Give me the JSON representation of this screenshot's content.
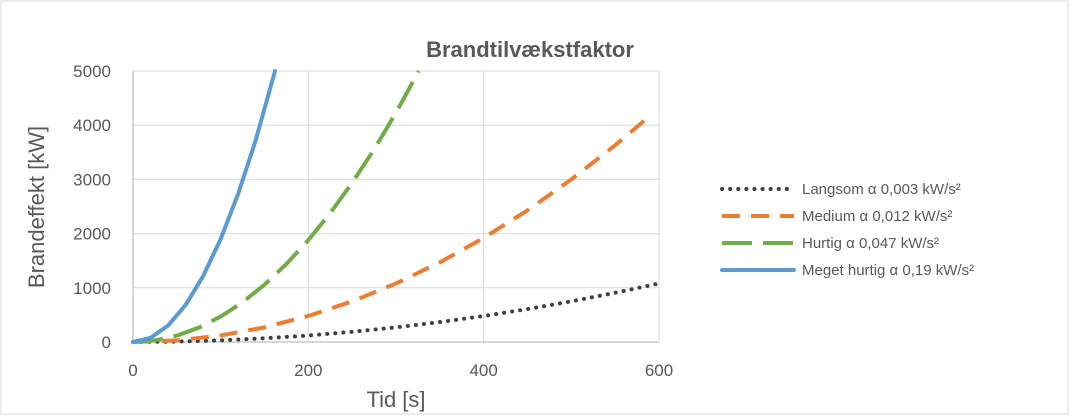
{
  "chart_data": {
    "type": "line",
    "title": "Brandtilvækstfaktor",
    "xlabel": "Tid [s]",
    "ylabel": "Brandeffekt [kW]",
    "xlim": [
      0,
      600
    ],
    "ylim": [
      0,
      5000
    ],
    "x_ticks": [
      "0",
      "200",
      "400",
      "600"
    ],
    "y_ticks": [
      "0",
      "1000",
      "2000",
      "3000",
      "4000",
      "5000"
    ],
    "grid": true,
    "legend_position": "right",
    "series": [
      {
        "name": "Langsom α 0,003 kW/s²",
        "color": "#404040",
        "style": "dotted",
        "x": [
          0,
          50,
          100,
          150,
          200,
          250,
          300,
          350,
          400,
          450,
          500,
          550,
          600
        ],
        "y": [
          0,
          8,
          30,
          68,
          120,
          188,
          270,
          368,
          480,
          608,
          750,
          908,
          1080
        ]
      },
      {
        "name": "Medium α 0,012 kW/s²",
        "color": "#ED7D31",
        "style": "dashed",
        "x": [
          0,
          50,
          100,
          150,
          200,
          250,
          300,
          350,
          400,
          450,
          500,
          550,
          590
        ],
        "y": [
          0,
          30,
          120,
          270,
          480,
          750,
          1080,
          1470,
          1920,
          2430,
          3000,
          3630,
          4177
        ]
      },
      {
        "name": "Hurtig α 0,047 kW/s²",
        "color": "#70AD47",
        "style": "longdash",
        "x": [
          0,
          25,
          50,
          75,
          100,
          125,
          150,
          175,
          200,
          225,
          250,
          275,
          300,
          326
        ],
        "y": [
          0,
          29,
          118,
          264,
          470,
          734,
          1058,
          1439,
          1880,
          2379,
          2938,
          3554,
          4230,
          5000
        ]
      },
      {
        "name": "Meget hurtig α 0,19 kW/s²",
        "color": "#5B9BD5",
        "style": "solid",
        "x": [
          0,
          20,
          40,
          60,
          80,
          100,
          120,
          140,
          162
        ],
        "y": [
          0,
          76,
          304,
          684,
          1216,
          1900,
          2736,
          3724,
          5000
        ]
      }
    ]
  }
}
